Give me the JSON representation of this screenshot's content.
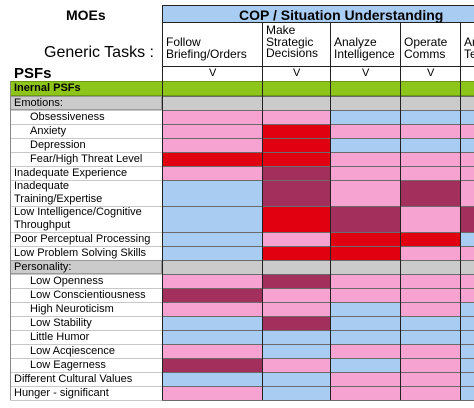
{
  "header": {
    "moes_label": "MOEs",
    "cop_title": "COP / Situation Understanding",
    "generic_tasks_label": "Generic Tasks :",
    "psfs_label": "PSFs",
    "tasks": [
      {
        "lines": [
          "Follow",
          "Briefing/Orders"
        ],
        "mark": "V"
      },
      {
        "lines": [
          "Make",
          "Strategic",
          "Decisions"
        ],
        "mark": "V"
      },
      {
        "lines": [
          "Analyze",
          "Intelligence"
        ],
        "mark": "V"
      },
      {
        "lines": [
          "Operate",
          "Comms"
        ],
        "mark": "V"
      },
      {
        "lines": [
          "An",
          "Te"
        ],
        "mark": ""
      }
    ]
  },
  "colors": {
    "light_blue": "#a9cdf2",
    "pink": "#f7a3d1",
    "red": "#e0000f",
    "maroon": "#a3305c",
    "gray": "#cbcbcb",
    "green": "#8ec51a",
    "cop_header": "#a9cdf2"
  },
  "legend_codes": {
    "B": "light_blue",
    "P": "pink",
    "R": "red",
    "M": "maroon",
    "G": "gray",
    "W": "white"
  },
  "rows": [
    {
      "label": "Inernal PSFs",
      "kind": "section-green",
      "bold": true,
      "indent": 0,
      "cells": []
    },
    {
      "label": "Emotions:",
      "kind": "section-gray",
      "indent": 0,
      "cells": [
        "G",
        "G",
        "G",
        "G",
        "G"
      ]
    },
    {
      "label": "Obsessiveness",
      "indent": 2,
      "cells": [
        "P",
        "P",
        "B",
        "B",
        "B"
      ]
    },
    {
      "label": "Anxiety",
      "indent": 2,
      "cells": [
        "P",
        "R",
        "P",
        "P",
        "P"
      ]
    },
    {
      "label": "Depression",
      "indent": 2,
      "cells": [
        "P",
        "R",
        "B",
        "B",
        "B"
      ]
    },
    {
      "label": "Fear/High Threat Level",
      "indent": 2,
      "cells": [
        "R",
        "R",
        "P",
        "P",
        "P"
      ]
    },
    {
      "label": "Inadequate Experience",
      "indent": 0,
      "cells": [
        "P",
        "M",
        "P",
        "P",
        "P"
      ]
    },
    {
      "label": "Inadequate Training/Expertise",
      "indent": 0,
      "lines": [
        "Inadequate",
        "Training/Expertise"
      ],
      "cells": [
        "B",
        "M",
        "P",
        "M",
        "P"
      ]
    },
    {
      "label": "Low Intelligence/Cognitive Throughput",
      "indent": 0,
      "lines": [
        "Low Intelligence/Cognitive",
        "Throughput"
      ],
      "cells": [
        "B",
        "R",
        "M",
        "P",
        "M"
      ]
    },
    {
      "label": "Poor Perceptual Processing",
      "indent": 0,
      "cells": [
        "B",
        "P",
        "R",
        "R",
        "B"
      ]
    },
    {
      "label": "Low Problem Solving Skills",
      "indent": 0,
      "cells": [
        "B",
        "R",
        "R",
        "P",
        "P"
      ]
    },
    {
      "label": "Personality:",
      "kind": "section-gray",
      "indent": 0,
      "cells": [
        "G",
        "G",
        "G",
        "G",
        "G"
      ]
    },
    {
      "label": "Low Openness",
      "indent": 2,
      "cells": [
        "P",
        "M",
        "P",
        "P",
        "P"
      ]
    },
    {
      "label": "Low Conscientiousness",
      "indent": 2,
      "cells": [
        "M",
        "P",
        "P",
        "P",
        "P"
      ]
    },
    {
      "label": "High Neuroticism",
      "indent": 2,
      "cells": [
        "P",
        "P",
        "B",
        "P",
        "B"
      ]
    },
    {
      "label": "Low Stability",
      "indent": 2,
      "cells": [
        "B",
        "M",
        "B",
        "B",
        "B"
      ]
    },
    {
      "label": "Little Humor",
      "indent": 2,
      "cells": [
        "B",
        "B",
        "B",
        "B",
        "B"
      ]
    },
    {
      "label": "Low Acqiescence",
      "indent": 2,
      "cells": [
        "P",
        "B",
        "P",
        "P",
        "B"
      ]
    },
    {
      "label": "Low Eagerness",
      "indent": 2,
      "cells": [
        "M",
        "P",
        "B",
        "P",
        "B"
      ]
    },
    {
      "label": "Different Cultural Values",
      "indent": 0,
      "cells": [
        "B",
        "B",
        "P",
        "P",
        "B"
      ]
    },
    {
      "label": "Hunger - significant",
      "indent": 0,
      "cells": [
        "P",
        "B",
        "P",
        "P",
        "B"
      ]
    }
  ]
}
